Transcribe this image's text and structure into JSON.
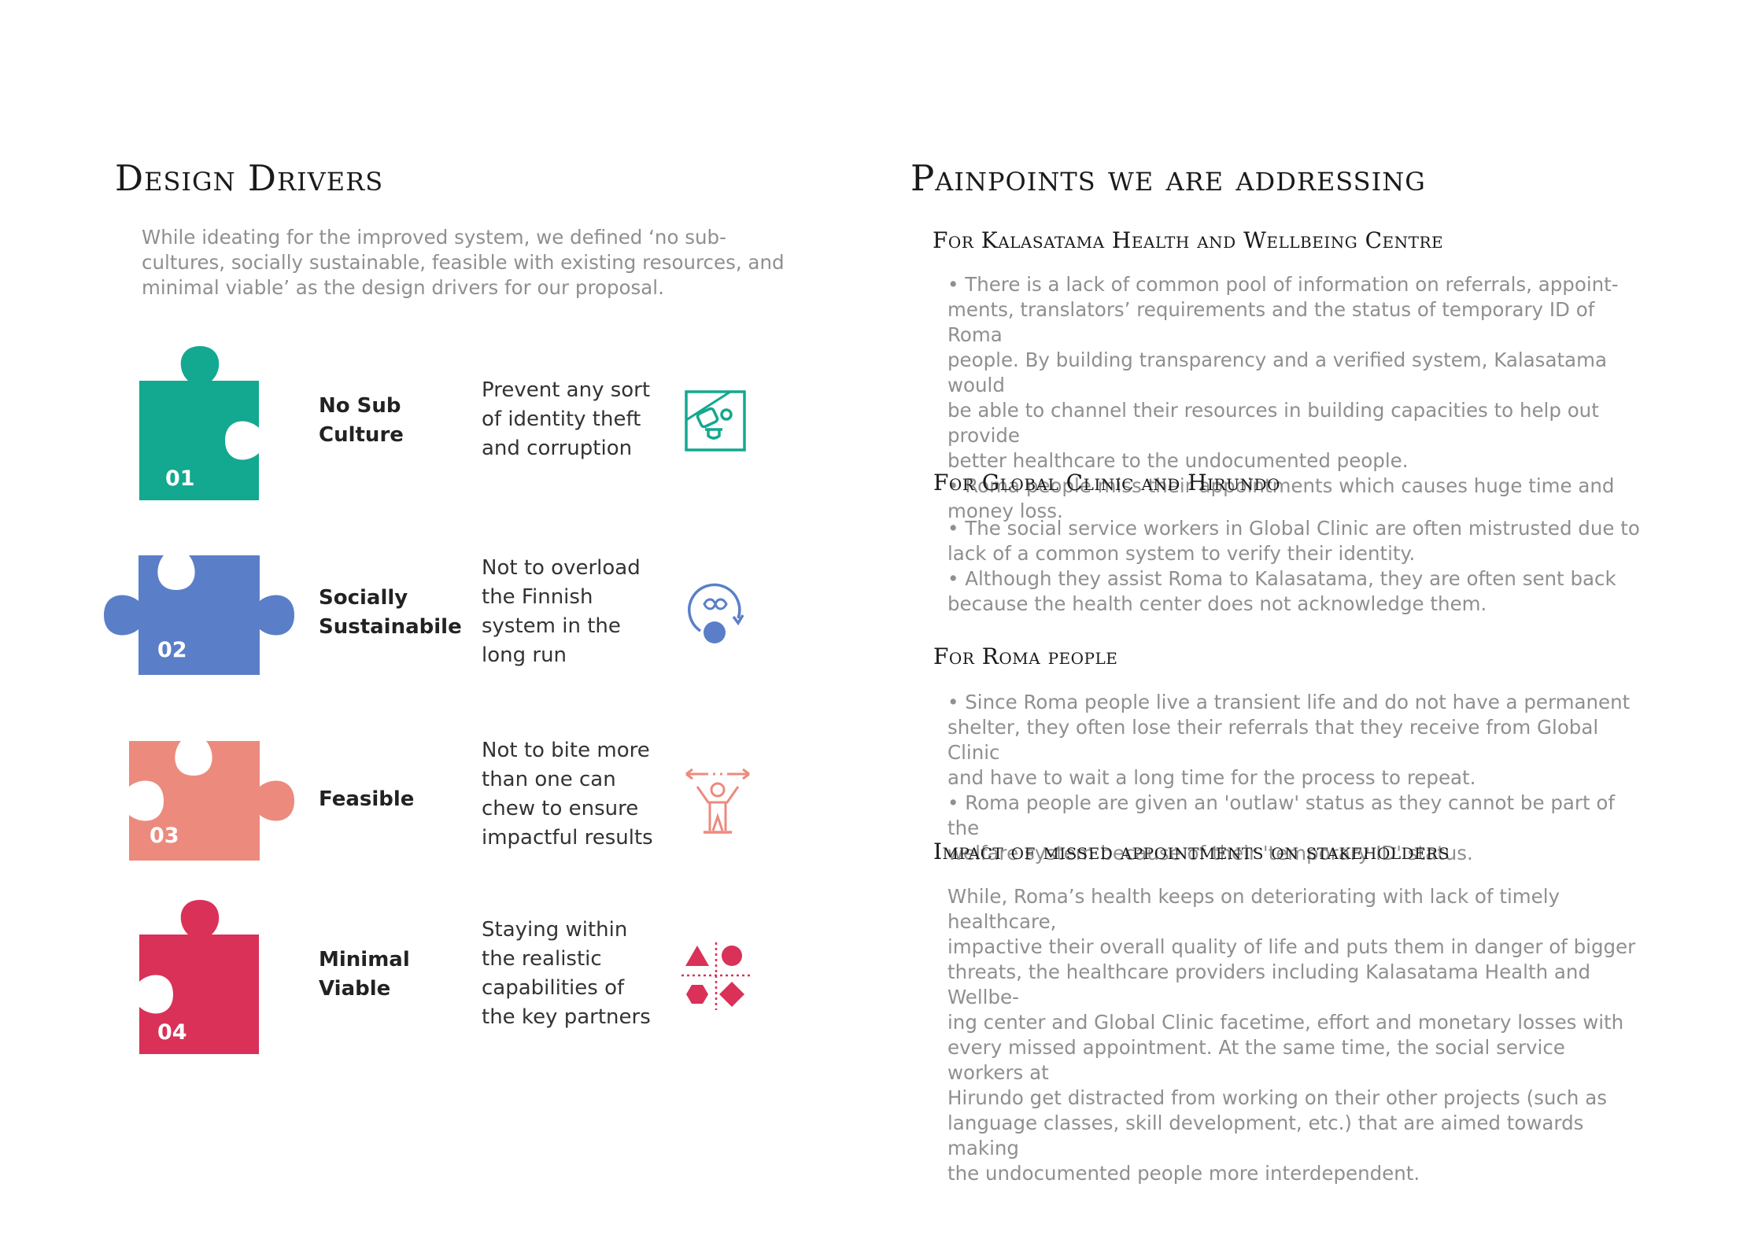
{
  "left": {
    "title": "Design Drivers",
    "intro": "While ideating for the improved system, we defined ‘no sub-cultures, socially sustainable, feasible with existing resources, and minimal viable’ as the design drivers for our proposal.",
    "drivers": [
      {
        "num": "01",
        "name_line1": "No Sub",
        "name_line2": "Culture",
        "desc": [
          "Prevent any sort",
          "of identity theft",
          "and corruption"
        ],
        "color": "#13a890",
        "icon": "identity-card-icon"
      },
      {
        "num": "02",
        "name_line1": "Socially",
        "name_line2": "Sustainabile",
        "desc": [
          "Not  to overload",
          "the Finnish",
          "system in the",
          "long run"
        ],
        "color": "#5a7fc8",
        "icon": "infinity-cycle-icon"
      },
      {
        "num": "03",
        "name_line1": "Feasible",
        "name_line2": "",
        "desc": [
          "Not to bite more",
          "than one can",
          "chew to ensure",
          "impactful results"
        ],
        "color": "#ec8a7e",
        "icon": "person-arrows-icon"
      },
      {
        "num": "04",
        "name_line1": "Minimal",
        "name_line2": "Viable",
        "desc": [
          "Staying within",
          "the realistic",
          "capabilities of",
          "the key partners"
        ],
        "color": "#d93158",
        "icon": "shapes-icon"
      }
    ]
  },
  "right": {
    "title": "Painpoints we are addressing",
    "sections": [
      {
        "heading": "For Kalasatama Health and Wellbeing Centre",
        "bullets": [
          "• There is a lack of common pool of information on referrals, appoint-",
          "ments, translators’ requirements and the status of temporary ID of Roma",
          "people. By building transparency and a verified system, Kalasatama would",
          "be able to channel their resources in building capacities to help out provide",
          "better healthcare to the undocumented people.",
          "• Roma people miss their appointments which causes huge time and",
          "money loss."
        ]
      },
      {
        "heading": "For Global Clinic and Hirundo",
        "bullets": [
          "• The social service workers in Global Clinic are often mistrusted due to",
          "lack of a common system to verify their identity.",
          "• Although they assist Roma to Kalasatama, they are often sent back",
          "because the health center does not acknowledge them."
        ]
      },
      {
        "heading": "For Roma people",
        "bullets": [
          "• Since Roma people live a transient life and do not have a permanent",
          "shelter, they often lose their referrals that they receive from Global Clinic",
          "and have to wait a long time for the process to repeat.",
          "• Roma people are given an 'outlaw' status as they cannot be part of the",
          "welfare system because of their 'temporary ID' status."
        ]
      },
      {
        "heading": "Impact of missed appointments on stakeholders",
        "bullets": [
          "While, Roma’s health keeps on deteriorating with lack of timely healthcare,",
          "impactive their overall quality of life and puts them in danger of bigger",
          "threats, the healthcare providers including Kalasatama Health and Wellbe-",
          "ing center and Global Clinic facetime, effort and monetary losses with",
          "every missed appointment. At the same time, the social service workers at",
          "Hirundo get distracted from working on their other projects (such as",
          "language classes, skill development, etc.) that are aimed towards making",
          "the undocumented people more interdependent."
        ]
      }
    ]
  }
}
